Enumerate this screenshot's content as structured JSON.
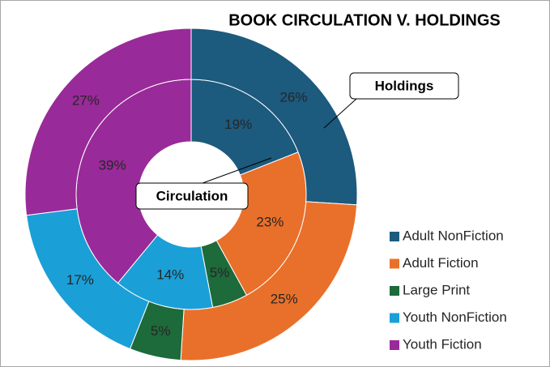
{
  "chart_data": {
    "type": "doughnut",
    "title": "BOOK CIRCULATION V. HOLDINGS",
    "categories": [
      "Adult NonFiction",
      "Adult Fiction",
      "Large Print",
      "Youth NonFiction",
      "Youth Fiction"
    ],
    "colors": [
      "#1c5a7e",
      "#e9702a",
      "#1d6a3b",
      "#1b9fd7",
      "#992a99"
    ],
    "series": [
      {
        "name": "Circulation",
        "values": [
          19,
          23,
          5,
          14,
          39
        ],
        "value_labels": [
          "19%",
          "23%",
          "5%",
          "14%",
          "39%"
        ]
      },
      {
        "name": "Holdings",
        "values": [
          26,
          25,
          5,
          17,
          27
        ],
        "value_labels": [
          "26%",
          "25%",
          "5%",
          "17%",
          "27%"
        ]
      }
    ]
  }
}
